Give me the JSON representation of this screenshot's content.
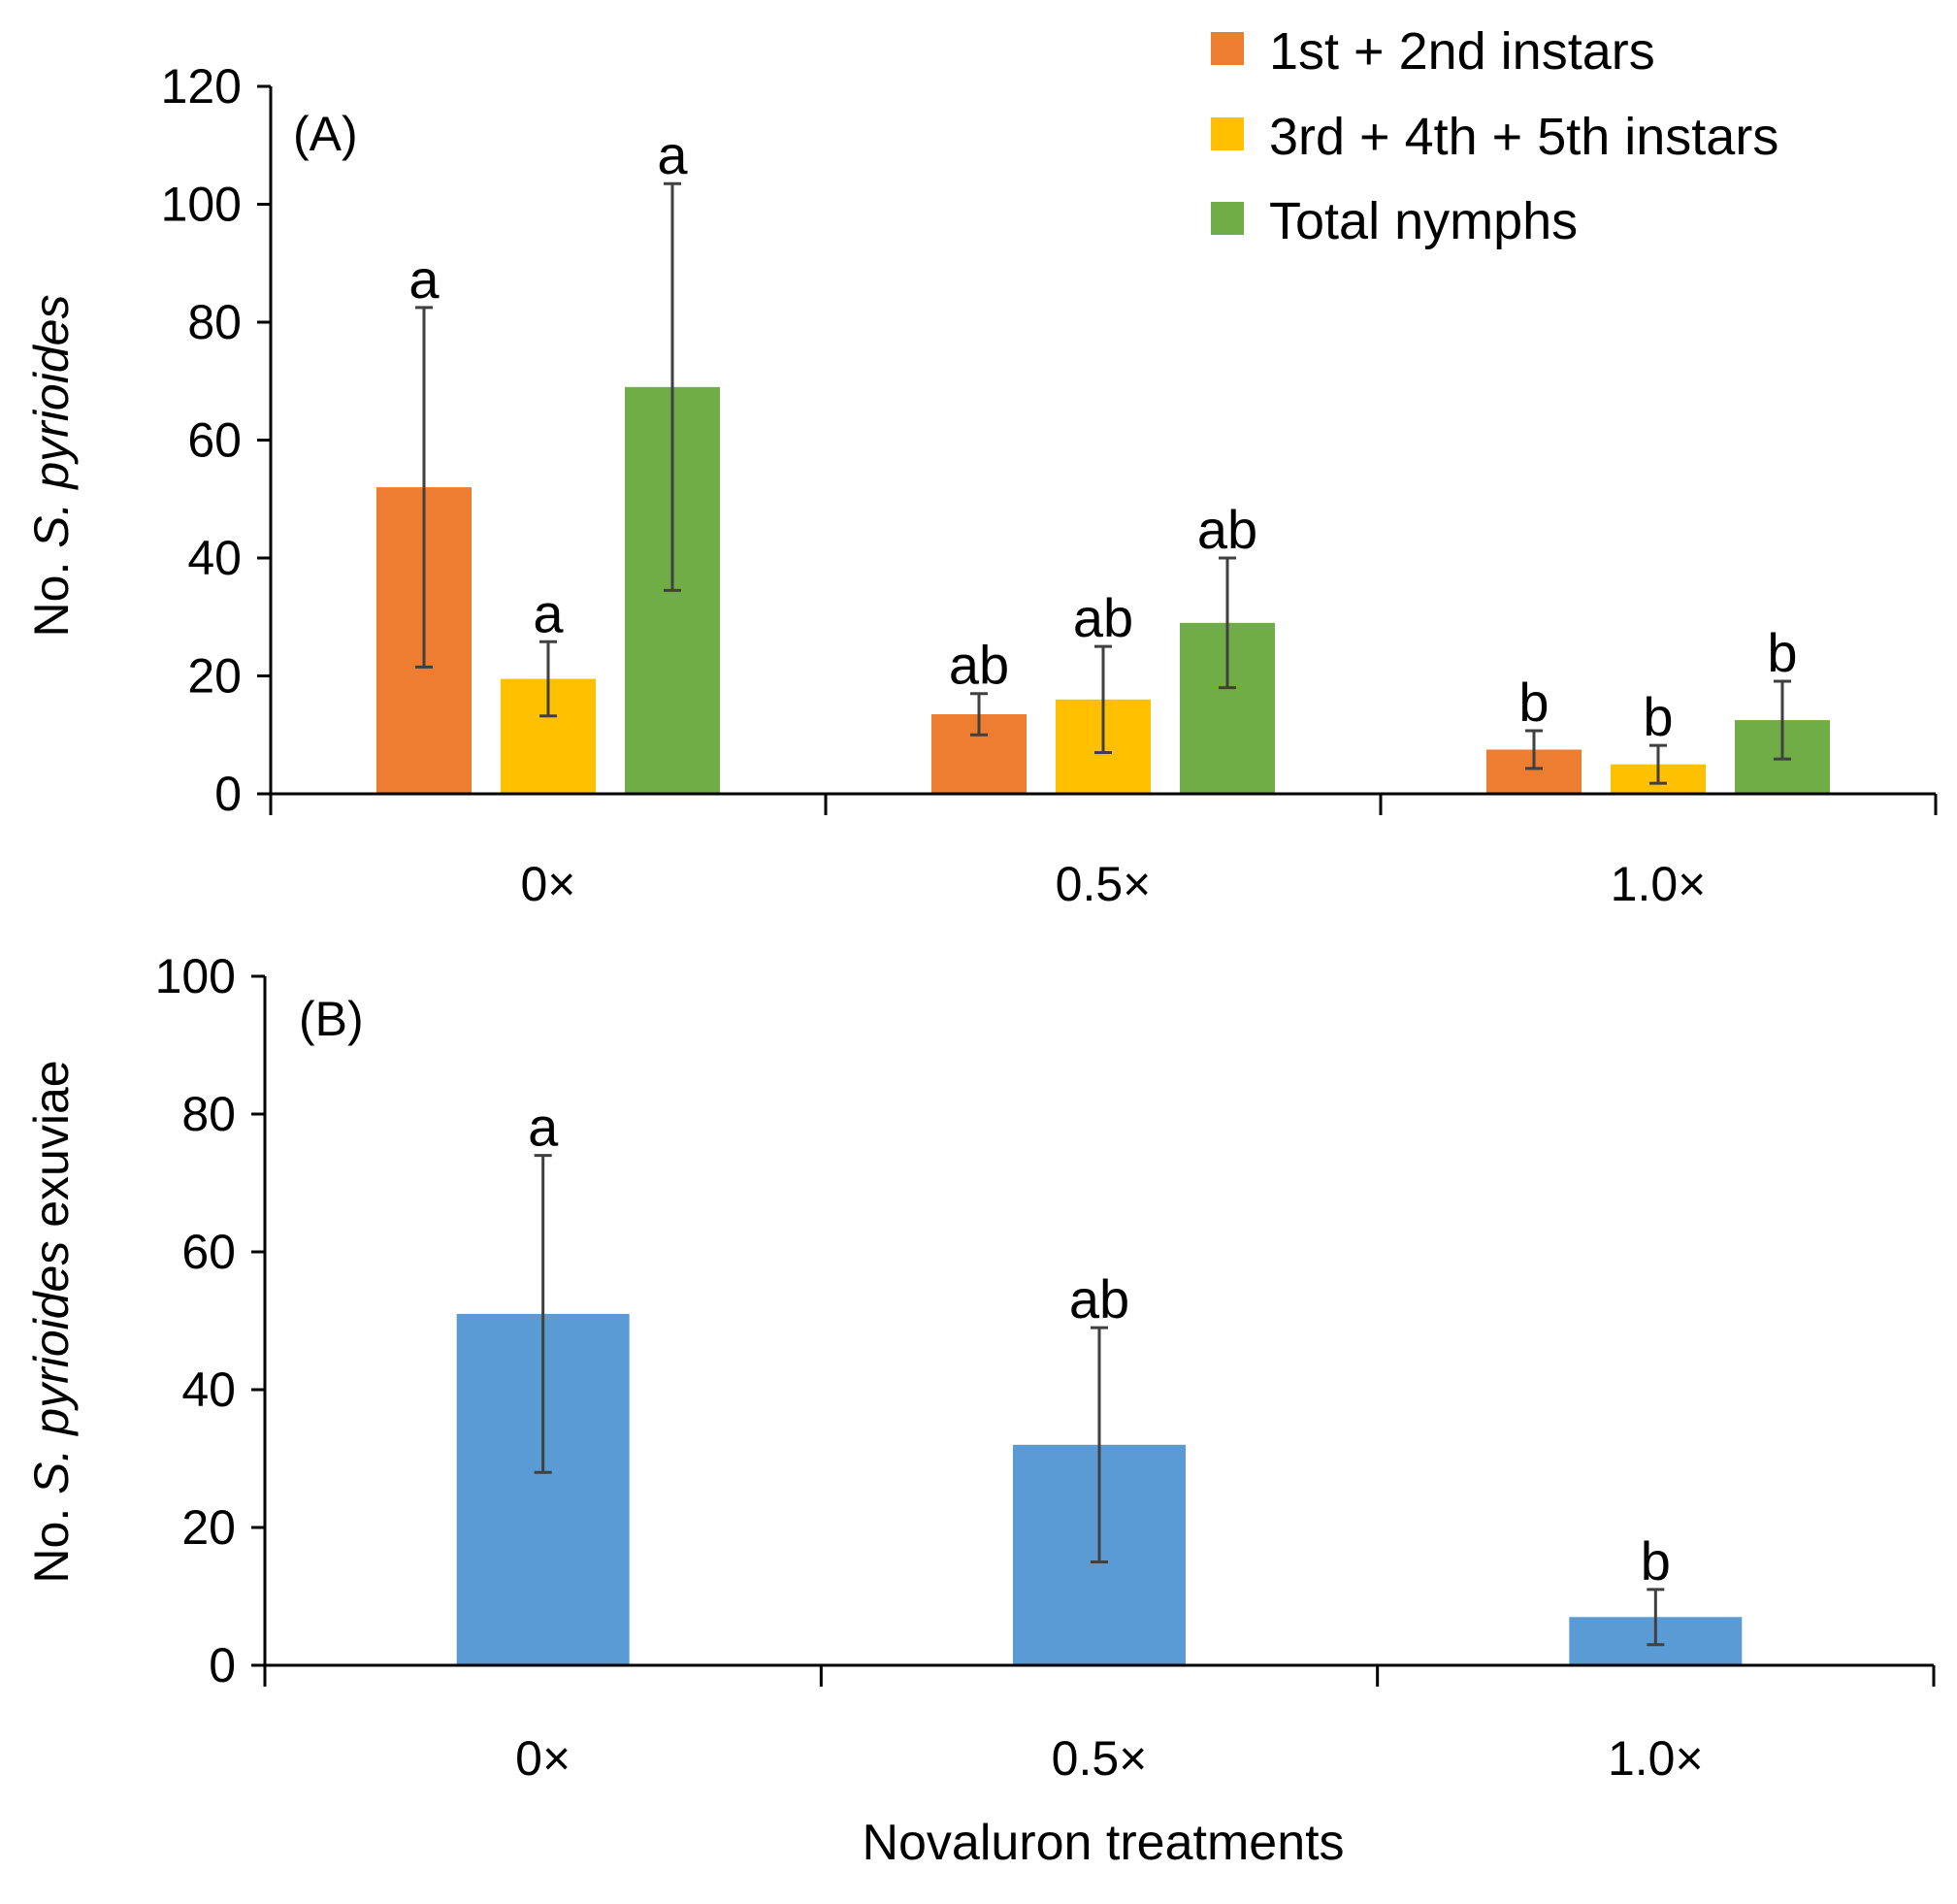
{
  "chart_data": [
    {
      "type": "bar",
      "panel_label": "(A)",
      "title": "",
      "ylabel_prefix": "No. ",
      "ylabel_italic": "S. pyrioides",
      "ylabel_suffix": "",
      "xlabel": "",
      "ylim": [
        0,
        120
      ],
      "yticks": [
        0,
        20,
        40,
        60,
        80,
        100,
        120
      ],
      "categories": [
        "0×",
        "0.5×",
        "1.0×"
      ],
      "legend_position": "top-right",
      "series": [
        {
          "name": "1st + 2nd instars",
          "color": "#ED7D31",
          "values": [
            52,
            13.5,
            7.5
          ],
          "errors": [
            30.5,
            3.5,
            3.2
          ],
          "letters": [
            "a",
            "ab",
            "b"
          ]
        },
        {
          "name": "3rd + 4th + 5th instars",
          "color": "#FFC000",
          "values": [
            19.5,
            16,
            5
          ],
          "errors": [
            6.3,
            9,
            3.2
          ],
          "letters": [
            "a",
            "ab",
            "b"
          ]
        },
        {
          "name": "Total nymphs",
          "color": "#70AD47",
          "values": [
            69,
            29,
            12.5
          ],
          "errors": [
            34.5,
            11,
            6.6
          ],
          "letters": [
            "a",
            "ab",
            "b"
          ]
        }
      ]
    },
    {
      "type": "bar",
      "panel_label": "(B)",
      "title": "",
      "ylabel_prefix": "No. ",
      "ylabel_italic": "S. pyrioides",
      "ylabel_suffix": " exuviae",
      "xlabel": "Novaluron treatments",
      "ylim": [
        0,
        100
      ],
      "yticks": [
        0,
        20,
        40,
        60,
        80,
        100
      ],
      "categories": [
        "0×",
        "0.5×",
        "1.0×"
      ],
      "series": [
        {
          "name": "Exuviae",
          "color": "#5B9BD5",
          "values": [
            51,
            32,
            7
          ],
          "errors": [
            23,
            17,
            4
          ],
          "letters": [
            "a",
            "ab",
            "b"
          ]
        }
      ]
    }
  ]
}
